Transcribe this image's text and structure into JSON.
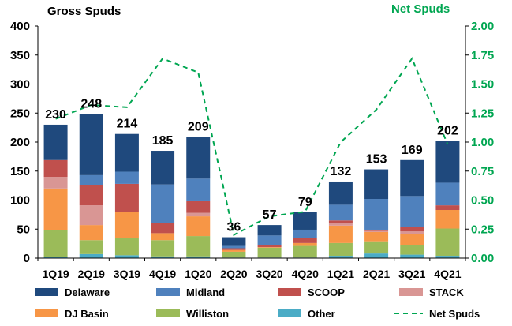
{
  "chart_data": {
    "type": "bar",
    "stacked": true,
    "title_left": "Gross Spuds",
    "title_right": "Net Spuds",
    "categories": [
      "1Q19",
      "2Q19",
      "3Q19",
      "4Q19",
      "1Q20",
      "2Q20",
      "3Q20",
      "4Q20",
      "1Q21",
      "2Q21",
      "3Q21",
      "4Q21"
    ],
    "totals": [
      230,
      248,
      214,
      185,
      209,
      36,
      57,
      79,
      132,
      153,
      169,
      202
    ],
    "totals_text": [
      "230",
      "248",
      "214",
      "185",
      "209",
      "36",
      "57",
      "79",
      "132",
      "153",
      "169",
      "202"
    ],
    "ylim": [
      0,
      400
    ],
    "yticks": [
      "0",
      "50",
      "100",
      "150",
      "200",
      "250",
      "300",
      "350",
      "400"
    ],
    "y2lim": [
      0,
      2.0
    ],
    "y2ticks": [
      "0.00",
      "0.25",
      "0.50",
      "0.75",
      "1.00",
      "1.25",
      "1.50",
      "1.75",
      "2.00"
    ],
    "series": [
      {
        "name": "Other",
        "color": "#4bacc6",
        "values": [
          2,
          7,
          5,
          3,
          3,
          1,
          1,
          1,
          4,
          8,
          6,
          4
        ]
      },
      {
        "name": "Williston",
        "color": "#9bbb59",
        "values": [
          46,
          24,
          29,
          28,
          35,
          10,
          17,
          20,
          22,
          21,
          16,
          47
        ]
      },
      {
        "name": "DJ Basin",
        "color": "#f79646",
        "values": [
          72,
          26,
          46,
          12,
          34,
          3,
          1,
          5,
          30,
          16,
          19,
          32
        ]
      },
      {
        "name": "STACK",
        "color": "#d99694",
        "values": [
          20,
          34,
          0,
          0,
          6,
          0,
          0,
          0,
          4,
          2,
          5,
          0
        ]
      },
      {
        "name": "SCOOP",
        "color": "#c0504d",
        "values": [
          29,
          35,
          48,
          18,
          20,
          3,
          4,
          9,
          5,
          2,
          8,
          8
        ]
      },
      {
        "name": "Midland",
        "color": "#4f81bd",
        "values": [
          0,
          17,
          21,
          66,
          39,
          4,
          16,
          14,
          27,
          53,
          53,
          39
        ]
      },
      {
        "name": "Delaware",
        "color": "#1f497d",
        "values": [
          61,
          105,
          65,
          58,
          72,
          15,
          18,
          30,
          40,
          51,
          62,
          72
        ]
      }
    ],
    "net_spuds": {
      "name": "Net Spuds",
      "color": "#00a651",
      "style": "dashed",
      "values": [
        1.2,
        1.32,
        1.3,
        1.72,
        1.6,
        0.2,
        0.36,
        0.4,
        1.0,
        1.28,
        1.72,
        0.98
      ]
    },
    "legend": [
      {
        "name": "Delaware",
        "color": "#1f497d",
        "kind": "swatch"
      },
      {
        "name": "Midland",
        "color": "#4f81bd",
        "kind": "swatch"
      },
      {
        "name": "SCOOP",
        "color": "#c0504d",
        "kind": "swatch"
      },
      {
        "name": "STACK",
        "color": "#d99694",
        "kind": "swatch"
      },
      {
        "name": "DJ Basin",
        "color": "#f79646",
        "kind": "swatch"
      },
      {
        "name": "Williston",
        "color": "#9bbb59",
        "kind": "swatch"
      },
      {
        "name": "Other",
        "color": "#4bacc6",
        "kind": "swatch"
      },
      {
        "name": "Net Spuds",
        "color": "#00a651",
        "kind": "dashed"
      }
    ]
  }
}
